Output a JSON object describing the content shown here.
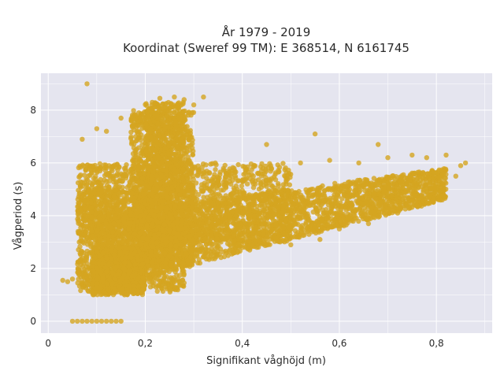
{
  "chart_data": {
    "type": "scatter",
    "title_lines": [
      "År 1979 - 2019",
      "Koordinat (Sweref 99 TM): E 368514, N 6161745"
    ],
    "xlabel": "Signifikant våghöjd (m)",
    "ylabel": "Vågperiod (s)",
    "xlim": [
      -0.015,
      0.915
    ],
    "ylim": [
      -0.45,
      9.4
    ],
    "xticks": [
      0,
      0.2,
      0.4,
      0.6,
      0.8
    ],
    "xtick_labels": [
      "0",
      "0,2",
      "0,4",
      "0,6",
      "0,8"
    ],
    "yticks": [
      0,
      2,
      4,
      6,
      8
    ],
    "ytick_labels": [
      "0",
      "2",
      "4",
      "6",
      "8"
    ],
    "grid": true,
    "colors": {
      "background": "#e5e5ef",
      "grid": "#ffffff",
      "marker": "#d4a520"
    },
    "series": [
      {
        "points": [
          [
            0.08,
            9.0
          ],
          [
            0.05,
            0.0
          ],
          [
            0.06,
            0.0
          ],
          [
            0.07,
            0.0
          ],
          [
            0.08,
            0.0
          ],
          [
            0.09,
            0.0
          ],
          [
            0.1,
            0.0
          ],
          [
            0.11,
            0.0
          ],
          [
            0.12,
            0.0
          ],
          [
            0.13,
            0.0
          ],
          [
            0.14,
            0.0
          ],
          [
            0.15,
            0.0
          ],
          [
            0.03,
            1.55
          ],
          [
            0.04,
            1.5
          ],
          [
            0.05,
            1.6
          ],
          [
            0.1,
            7.3
          ],
          [
            0.12,
            7.2
          ],
          [
            0.15,
            7.7
          ],
          [
            0.07,
            6.9
          ],
          [
            0.23,
            8.45
          ],
          [
            0.26,
            8.5
          ],
          [
            0.28,
            8.4
          ],
          [
            0.32,
            8.5
          ],
          [
            0.3,
            8.2
          ],
          [
            0.45,
            6.7
          ],
          [
            0.55,
            7.1
          ],
          [
            0.68,
            6.7
          ],
          [
            0.75,
            6.3
          ],
          [
            0.78,
            6.2
          ],
          [
            0.82,
            6.3
          ],
          [
            0.86,
            6.0
          ],
          [
            0.85,
            5.9
          ],
          [
            0.84,
            5.5
          ],
          [
            0.29,
            2.2
          ],
          [
            0.33,
            2.7
          ],
          [
            0.43,
            2.8
          ],
          [
            0.5,
            2.9
          ],
          [
            0.56,
            3.1
          ],
          [
            0.6,
            3.5
          ],
          [
            0.66,
            3.7
          ],
          [
            0.72,
            4.1
          ],
          [
            0.76,
            4.4
          ],
          [
            0.8,
            4.9
          ],
          [
            0.21,
            1.6
          ],
          [
            0.24,
            1.5
          ],
          [
            0.26,
            1.5
          ],
          [
            0.28,
            1.45
          ],
          [
            0.46,
            5.8
          ],
          [
            0.52,
            6.0
          ],
          [
            0.58,
            6.1
          ],
          [
            0.64,
            6.0
          ],
          [
            0.7,
            6.2
          ]
        ]
      }
    ],
    "clusters": [
      {
        "x": [
          0.06,
          0.28
        ],
        "y": [
          1.1,
          5.0
        ],
        "n": 1400
      },
      {
        "x": [
          0.09,
          0.2
        ],
        "y": [
          1.0,
          2.8
        ],
        "n": 700
      },
      {
        "x": [
          0.17,
          0.3
        ],
        "y": [
          2.0,
          8.0
        ],
        "n": 1200
      },
      {
        "x": [
          0.2,
          0.28
        ],
        "y": [
          5.0,
          8.3
        ],
        "n": 500
      },
      {
        "x": [
          0.2,
          0.5
        ],
        "y": [
          3.0,
          6.0
        ],
        "n": 900
      },
      {
        "x": [
          0.06,
          0.2
        ],
        "y": [
          3.2,
          6.0
        ],
        "n": 500
      }
    ],
    "band": {
      "x_start": 0.1,
      "x_end": 0.82,
      "lower_start": 1.2,
      "lower_end": 4.6,
      "upper_start": 4.0,
      "upper_end": 5.8,
      "n": 2600
    }
  }
}
